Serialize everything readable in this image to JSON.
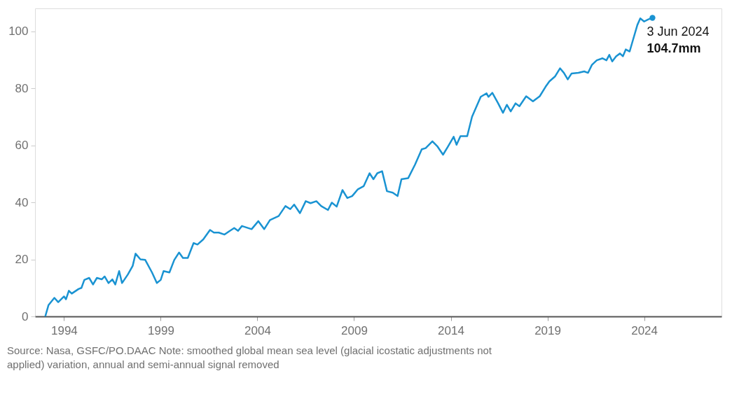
{
  "chart_data": {
    "type": "line",
    "x": [
      1993.03,
      1993.2,
      1993.5,
      1993.7,
      1994.0,
      1994.1,
      1994.25,
      1994.4,
      1994.75,
      1994.9,
      1995.05,
      1995.3,
      1995.5,
      1995.7,
      1995.95,
      1996.1,
      1996.3,
      1996.5,
      1996.65,
      1996.85,
      1997.0,
      1997.3,
      1997.55,
      1997.7,
      1997.95,
      1998.2,
      1998.55,
      1998.8,
      1999.0,
      1999.15,
      1999.45,
      1999.7,
      1999.95,
      2000.15,
      2000.4,
      2000.7,
      2000.9,
      2001.2,
      2001.55,
      2001.75,
      2002.0,
      2002.3,
      2002.55,
      2002.8,
      2003.0,
      2003.2,
      2003.7,
      2004.05,
      2004.35,
      2004.65,
      2005.1,
      2005.45,
      2005.7,
      2005.9,
      2006.2,
      2006.5,
      2006.75,
      2007.05,
      2007.3,
      2007.65,
      2007.85,
      2008.1,
      2008.4,
      2008.65,
      2008.9,
      2009.2,
      2009.5,
      2009.8,
      2010.0,
      2010.2,
      2010.45,
      2010.7,
      2011.0,
      2011.25,
      2011.45,
      2011.8,
      2012.15,
      2012.5,
      2012.7,
      2013.05,
      2013.3,
      2013.6,
      2013.85,
      2014.15,
      2014.3,
      2014.5,
      2014.85,
      2015.1,
      2015.55,
      2015.85,
      2015.95,
      2016.15,
      2016.45,
      2016.7,
      2016.9,
      2017.1,
      2017.35,
      2017.55,
      2017.9,
      2018.25,
      2018.6,
      2018.9,
      2019.1,
      2019.4,
      2019.65,
      2019.85,
      2020.05,
      2020.25,
      2020.6,
      2020.9,
      2021.1,
      2021.3,
      2021.55,
      2021.85,
      2022.05,
      2022.2,
      2022.35,
      2022.55,
      2022.75,
      2022.9,
      2023.05,
      2023.25,
      2023.4,
      2023.65,
      2023.8,
      2024.0,
      2024.2,
      2024.43
    ],
    "series": [
      {
        "marker": "none",
        "color": "#1a93d2",
        "values": [
          0,
          4,
          6.5,
          5,
          7,
          6,
          9,
          8,
          9.6,
          10,
          12.8,
          13.5,
          11.2,
          13.5,
          13,
          14,
          11.7,
          13,
          11.2,
          15.9,
          11.7,
          14.7,
          17.7,
          22,
          20,
          19.8,
          15.4,
          11.7,
          12.8,
          15.9,
          15.4,
          19.8,
          22.4,
          20.5,
          20.5,
          25.7,
          25.2,
          27,
          30.3,
          29.4,
          29.4,
          28.7,
          29.9,
          31,
          30,
          31.7,
          30.6,
          33.4,
          30.6,
          33.8,
          35.2,
          38.7,
          37.6,
          39.2,
          36.2,
          40.4,
          39.7,
          40.4,
          38.7,
          37.3,
          39.9,
          38.5,
          44.3,
          41.5,
          42.2,
          44.6,
          45.7,
          50.2,
          48.1,
          50.2,
          50.9,
          43.9,
          43.4,
          42.2,
          48.1,
          48.5,
          53.2,
          58.6,
          59,
          61.4,
          59.7,
          56.7,
          59.5,
          63,
          60.2,
          63.2,
          63.2,
          70,
          77,
          78.2,
          77,
          78.4,
          74.7,
          71.4,
          74.2,
          71.9,
          74.7,
          73.7,
          77.2,
          75.4,
          77.2,
          80.5,
          82.4,
          84.2,
          87,
          85.4,
          83.1,
          85.2,
          85.4,
          85.9,
          85.4,
          88.2,
          89.8,
          90.5,
          89.8,
          91.7,
          89.4,
          91.2,
          92.2,
          91.2,
          93.6,
          92.9,
          96.4,
          102.2,
          104.5,
          103.4,
          104.1,
          104.7
        ]
      },
      {
        "type": "scatter",
        "marker": "circle",
        "color": "#1a93d2",
        "x": [
          2024.43
        ],
        "values": [
          104.7
        ]
      }
    ],
    "xlim": [
      1992.5,
      2028
    ],
    "xticks": [
      1994,
      1999,
      2004,
      2009,
      2014,
      2019,
      2024
    ],
    "ylim": [
      0,
      108
    ],
    "yticks": [
      0,
      20,
      40,
      60,
      80,
      100
    ],
    "line_style": "solid",
    "grid": false,
    "annotations": [
      {
        "text": "3 Jun 2024\n104.7mm",
        "x": 2024.43,
        "y": 104.7
      },
      "Source: Nasa, GSFC/PO.DAAC Note: smoothed global mean sea level (glacial icostatic adjustments not applied) variation, annual and semi-annual signal removed"
    ]
  }
}
